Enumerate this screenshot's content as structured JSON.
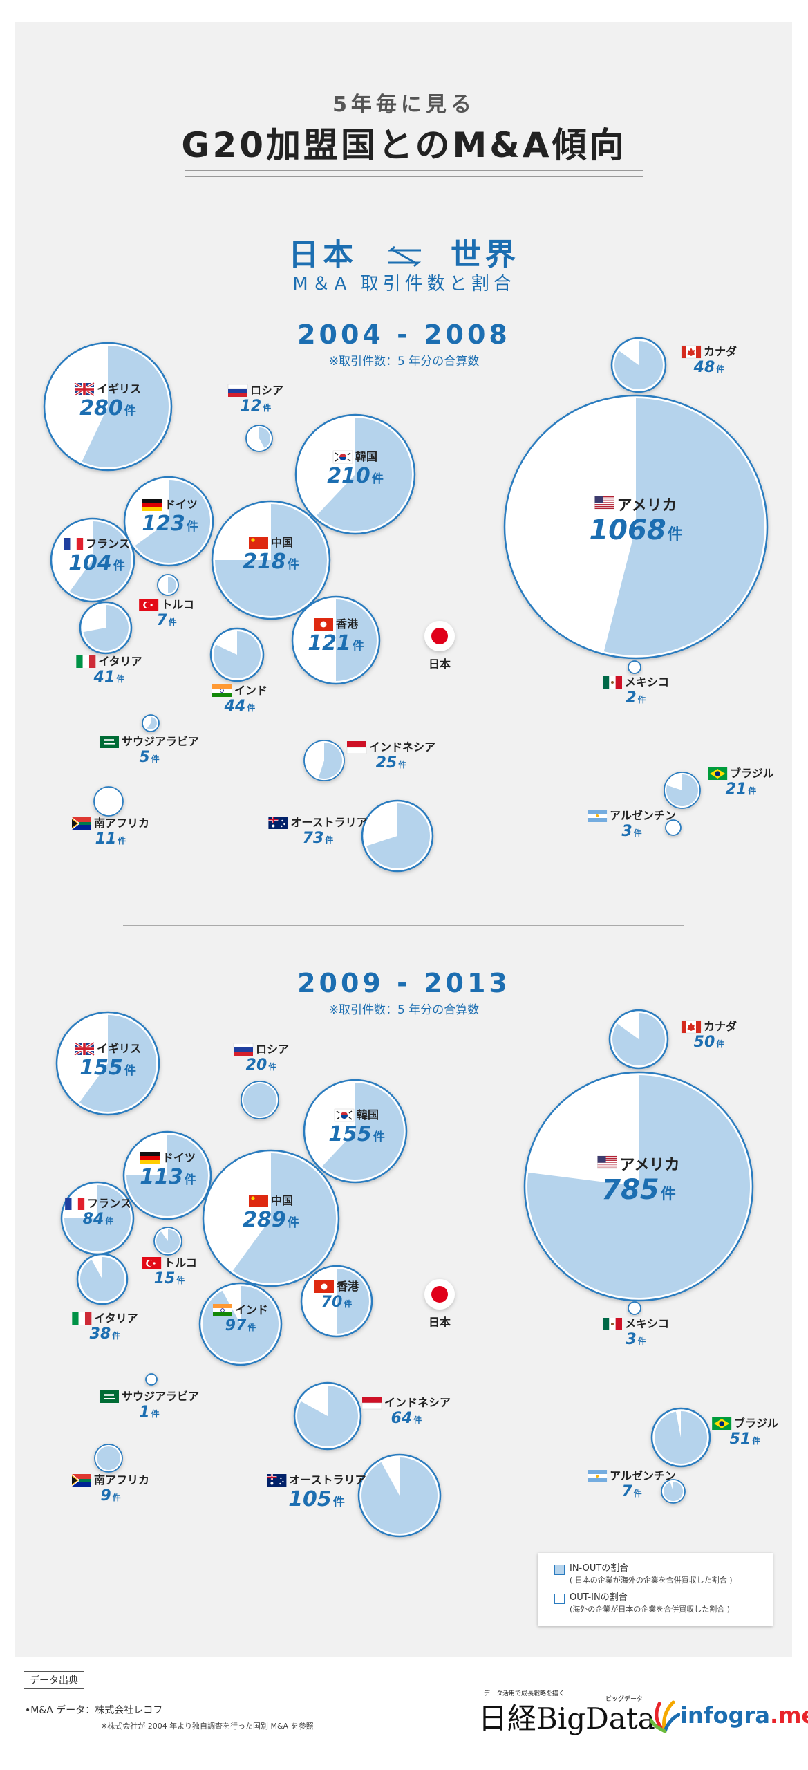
{
  "header": {
    "subtitle": "5年毎に見る",
    "title": "G20加盟国とのM&A傾向",
    "japan_world_left": "日本",
    "japan_world_right": "世界",
    "japan_world_sub": "M＆A 取引件数と割合"
  },
  "japan_label": "日本",
  "unit": "件",
  "colors": {
    "in_out": "#b5d3ec",
    "out_in": "#ffffff",
    "accent": "#1c6eb1",
    "stroke": "#2a7bbf",
    "japan": "#e0001a"
  },
  "legend": {
    "in_out_label": "IN-OUTの割合",
    "in_out_detail": "( 日本の企業が海外の企業を合併買収した割合 )",
    "out_in_label": "OUT-INの割合",
    "out_in_detail": "(海外の企業が日本の企業を合併買収した割合 )"
  },
  "source": {
    "box_label": "データ出典",
    "line": "•M&A データ：株式会社レコフ",
    "note": "※株式会社が 2004 年より独自調査を行った国別 M&A を参照"
  },
  "logos": {
    "nikkei_tag": "データ活用で成長戦略を描く",
    "nikkei": "日経BigData",
    "nikkei_ruby": "ビッグデータ",
    "infogra_main": "infogra",
    "infogra_suffix": ".me"
  },
  "chart_data": [
    {
      "type": "pie",
      "period": "2004 - 2008",
      "note": "※取引件数：5 年分の合算数",
      "countries": [
        {
          "name": "イギリス",
          "count": 280,
          "in_out_share": 0.57
        },
        {
          "name": "ロシア",
          "count": 12,
          "in_out_share": 0.42
        },
        {
          "name": "韓国",
          "count": 210,
          "in_out_share": 0.62
        },
        {
          "name": "ドイツ",
          "count": 123,
          "in_out_share": 0.65
        },
        {
          "name": "中国",
          "count": 218,
          "in_out_share": 0.75
        },
        {
          "name": "フランス",
          "count": 104,
          "in_out_share": 0.6
        },
        {
          "name": "トルコ",
          "count": 7,
          "in_out_share": 0.5
        },
        {
          "name": "香港",
          "count": 121,
          "in_out_share": 0.5
        },
        {
          "name": "イタリア",
          "count": 41,
          "in_out_share": 0.72
        },
        {
          "name": "インド",
          "count": 44,
          "in_out_share": 0.82
        },
        {
          "name": "サウジアラビア",
          "count": 5,
          "in_out_share": 0.6
        },
        {
          "name": "インドネシア",
          "count": 25,
          "in_out_share": 0.55
        },
        {
          "name": "南アフリカ",
          "count": 11,
          "in_out_share": 0.0
        },
        {
          "name": "オーストラリア",
          "count": 73,
          "in_out_share": 0.7
        },
        {
          "name": "カナダ",
          "count": 48,
          "in_out_share": 0.85
        },
        {
          "name": "アメリカ",
          "count": 1068,
          "in_out_share": 0.54
        },
        {
          "name": "メキシコ",
          "count": 2,
          "in_out_share": 0.0
        },
        {
          "name": "ブラジル",
          "count": 21,
          "in_out_share": 0.8
        },
        {
          "name": "アルゼンチン",
          "count": 3,
          "in_out_share": 0.0
        }
      ]
    },
    {
      "type": "pie",
      "period": "2009 - 2013",
      "note": "※取引件数：5 年分の合算数",
      "countries": [
        {
          "name": "イギリス",
          "count": 155,
          "in_out_share": 0.6
        },
        {
          "name": "ロシア",
          "count": 20,
          "in_out_share": 1.0
        },
        {
          "name": "韓国",
          "count": 155,
          "in_out_share": 0.62
        },
        {
          "name": "ドイツ",
          "count": 113,
          "in_out_share": 0.75
        },
        {
          "name": "中国",
          "count": 289,
          "in_out_share": 0.6
        },
        {
          "name": "フランス",
          "count": 84,
          "in_out_share": 0.75
        },
        {
          "name": "トルコ",
          "count": 15,
          "in_out_share": 0.9
        },
        {
          "name": "香港",
          "count": 70,
          "in_out_share": 0.5
        },
        {
          "name": "イタリア",
          "count": 38,
          "in_out_share": 0.92
        },
        {
          "name": "インド",
          "count": 97,
          "in_out_share": 0.92
        },
        {
          "name": "サウジアラビア",
          "count": 1,
          "in_out_share": 0.0
        },
        {
          "name": "インドネシア",
          "count": 64,
          "in_out_share": 0.83
        },
        {
          "name": "南アフリカ",
          "count": 9,
          "in_out_share": 1.0
        },
        {
          "name": "オーストラリア",
          "count": 105,
          "in_out_share": 0.92
        },
        {
          "name": "カナダ",
          "count": 50,
          "in_out_share": 0.85
        },
        {
          "name": "アメリカ",
          "count": 785,
          "in_out_share": 0.77
        },
        {
          "name": "メキシコ",
          "count": 3,
          "in_out_share": 0.0
        },
        {
          "name": "ブラジル",
          "count": 51,
          "in_out_share": 0.97
        },
        {
          "name": "アルゼンチン",
          "count": 7,
          "in_out_share": 0.95
        }
      ]
    }
  ]
}
